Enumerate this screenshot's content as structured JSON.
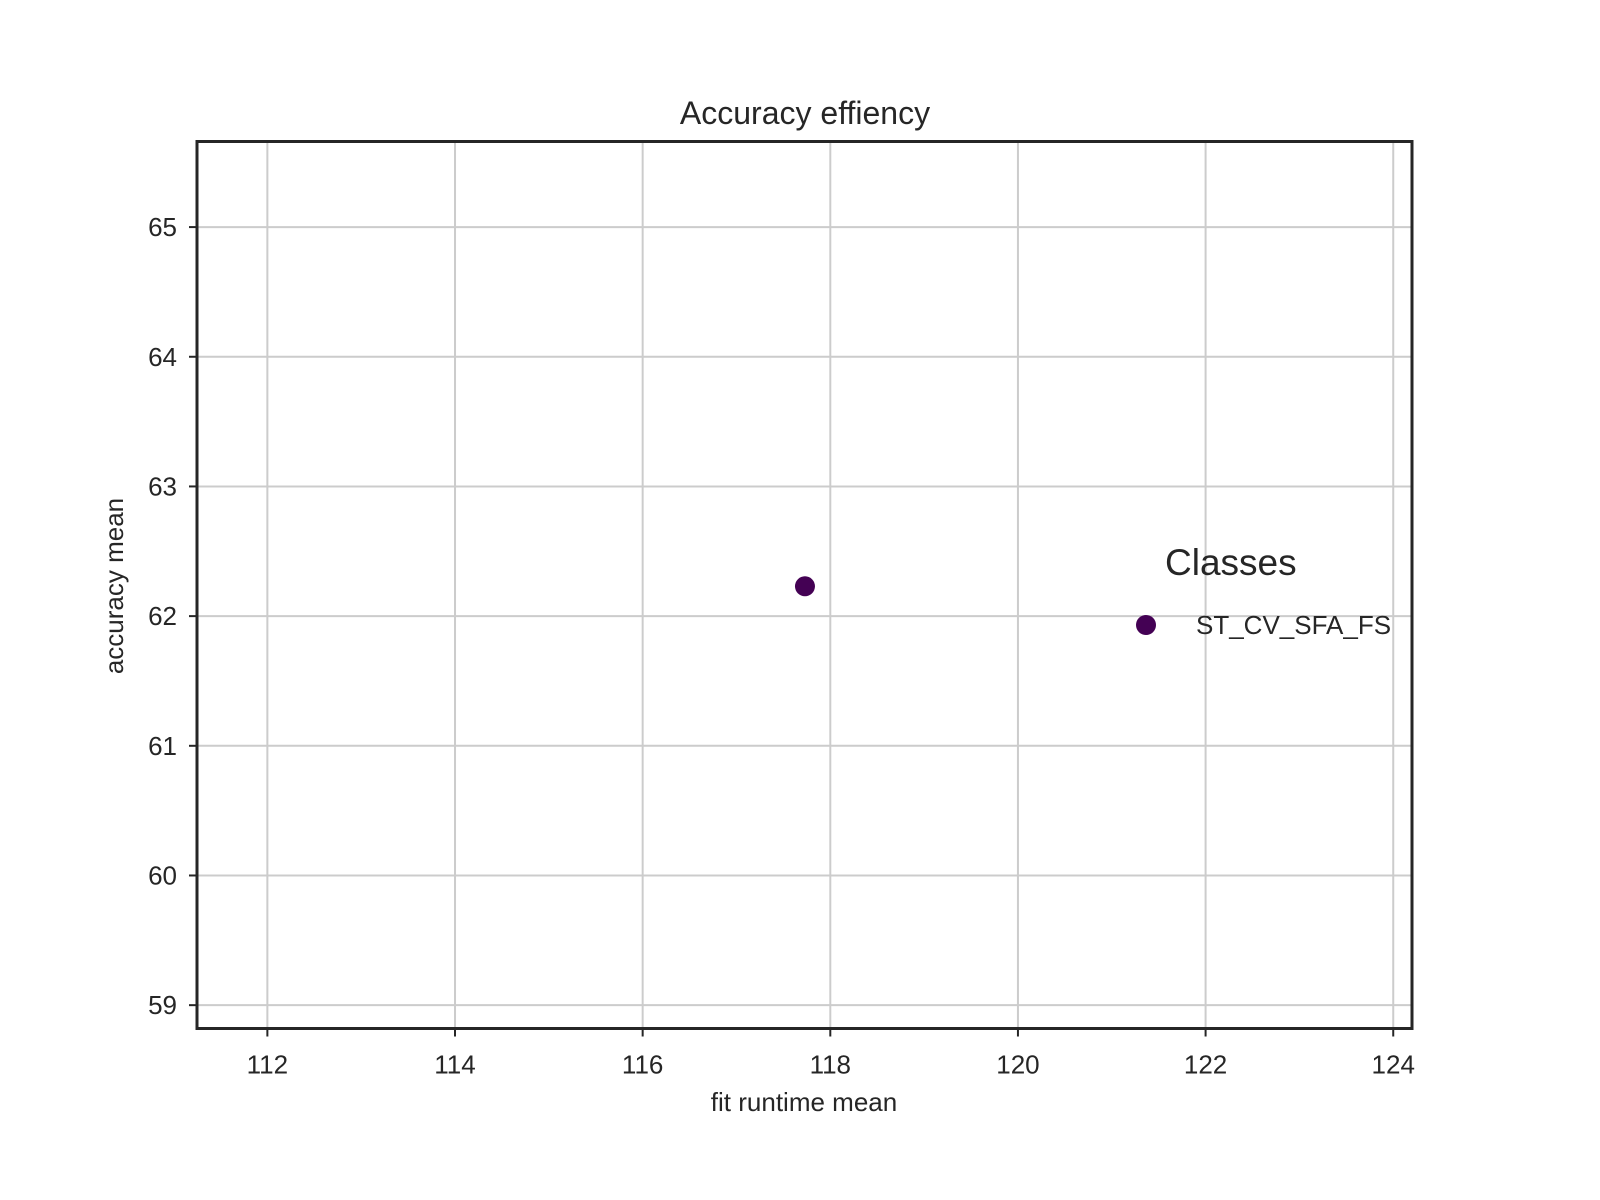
{
  "chart_data": {
    "type": "scatter",
    "title": "Accuracy effiency",
    "xlabel": "fit runtime mean",
    "ylabel": "accuracy mean",
    "xlim": [
      111.25,
      124.2
    ],
    "ylim": [
      58.82,
      65.66
    ],
    "xticks": [
      112,
      114,
      116,
      118,
      120,
      122,
      124
    ],
    "yticks": [
      59,
      60,
      61,
      62,
      63,
      64,
      65
    ],
    "grid": true,
    "legend": {
      "title": "Classes",
      "placement": "center-right"
    },
    "series": [
      {
        "name": "ST_CV_SFA_FS",
        "color": "#440154",
        "points": [
          {
            "x": 117.73,
            "y": 62.23
          }
        ]
      }
    ]
  }
}
